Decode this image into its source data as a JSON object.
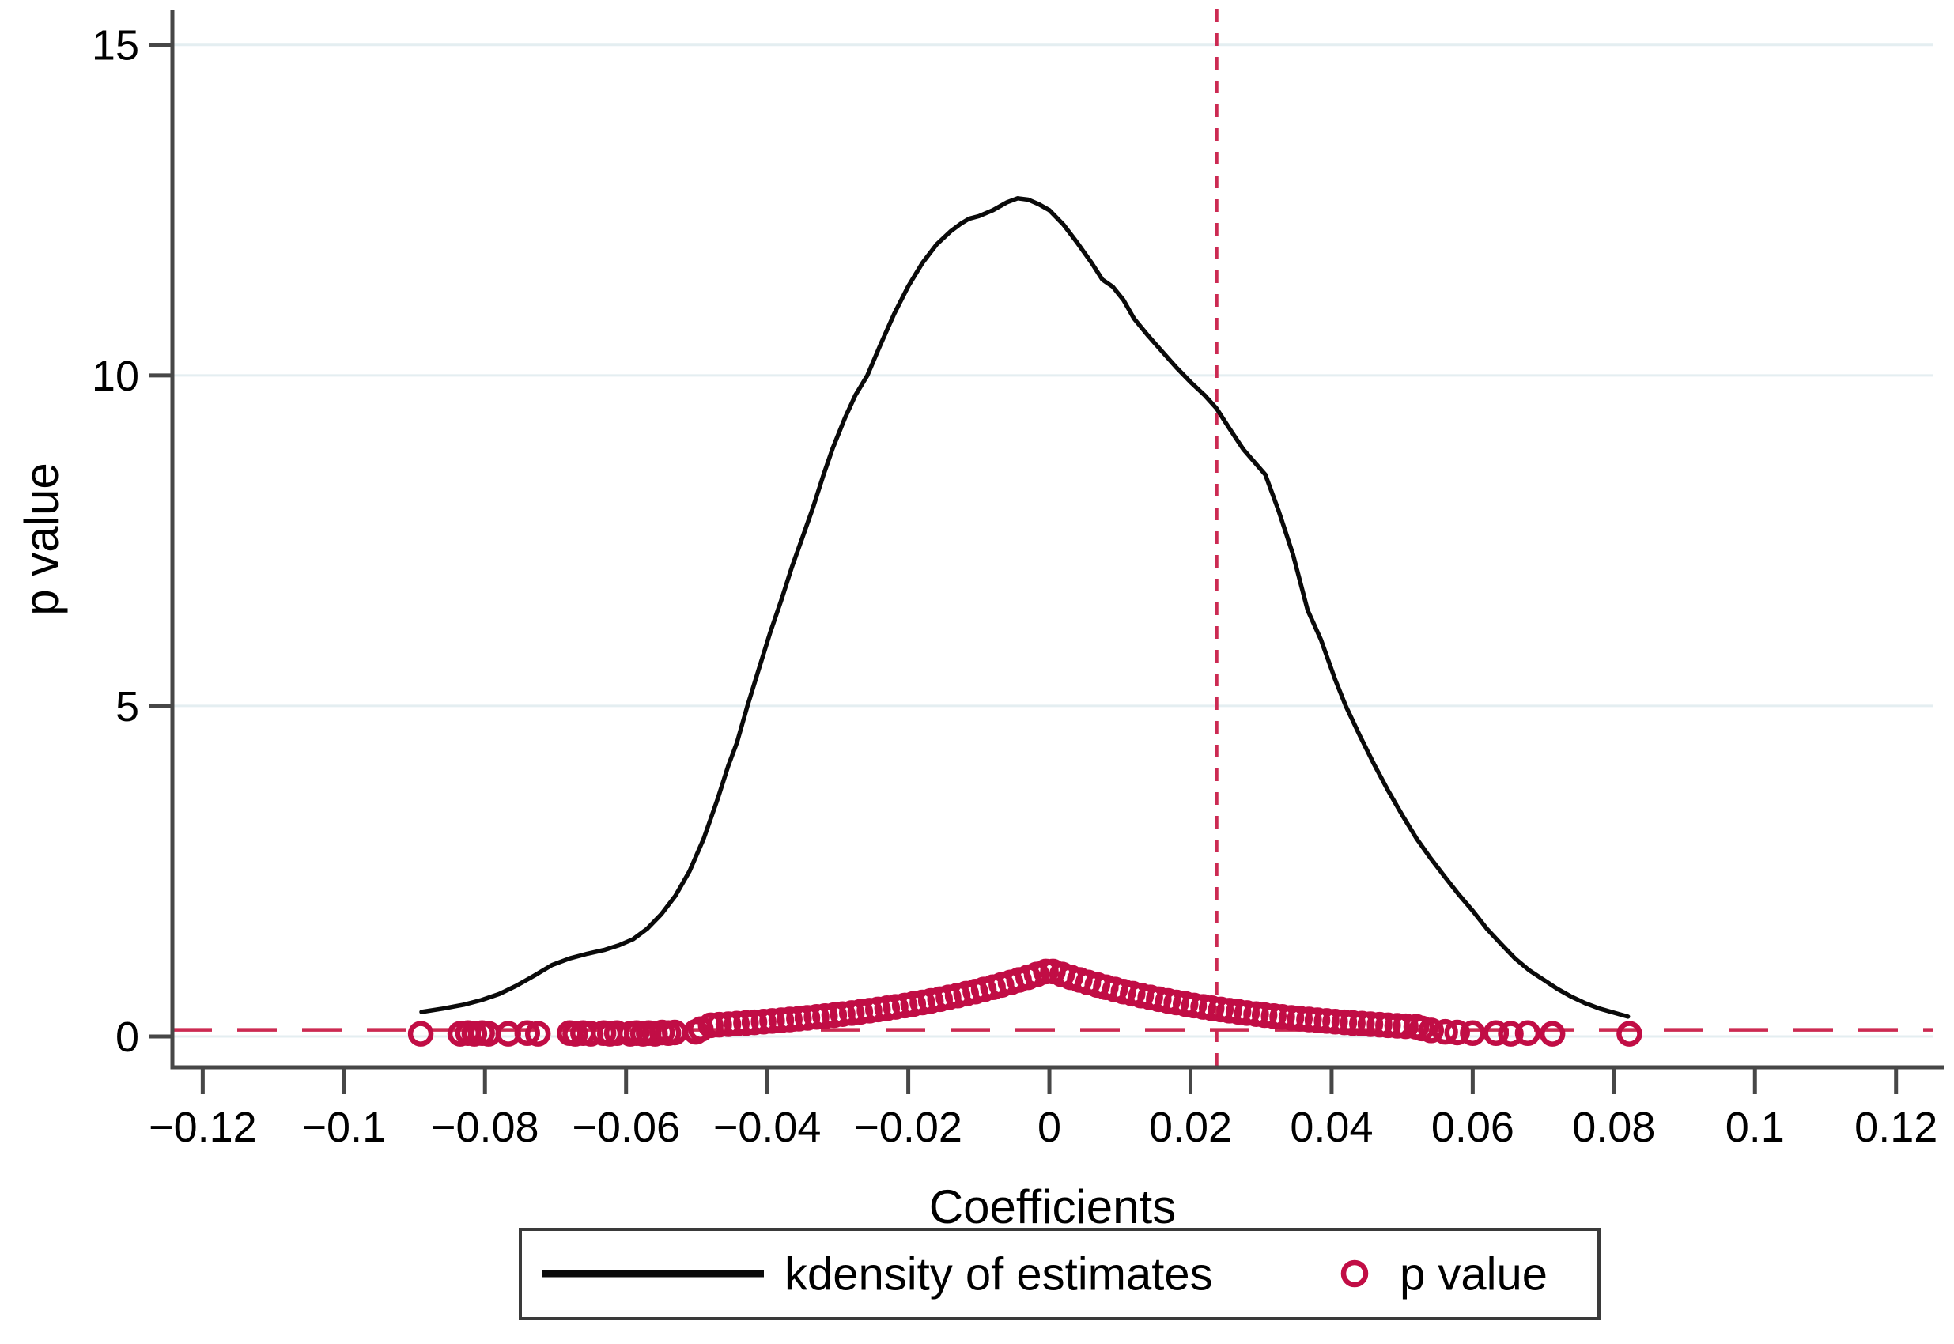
{
  "palette": {
    "cranberry": "#c10d45",
    "dashed_red": "#cc2a52",
    "curve_black": "#0a0a0a",
    "grid": "#e4eef1",
    "axis": "#474747",
    "background": "#ffffff"
  },
  "chart_data": {
    "type": "line",
    "title": "",
    "xlabel": "Coefficients",
    "ylabel": "p value",
    "xlim": [
      -0.1243,
      0.1253
    ],
    "ylim": [
      -0.467,
      15.5
    ],
    "grid": "horizontal",
    "legend_position": "bottom",
    "x_ticks": [
      -0.12,
      -0.1,
      -0.08,
      -0.06,
      -0.04,
      -0.02,
      0,
      0.02,
      0.04,
      0.06,
      0.08,
      0.1,
      0.12
    ],
    "x_tick_labels": [
      "−0.12",
      "−0.1",
      "−0.08",
      "−0.06",
      "−0.04",
      "−0.02",
      "0",
      "0.02",
      "0.04",
      "0.06",
      "0.08",
      "0.1",
      "0.12"
    ],
    "y_ticks": [
      0,
      5,
      10,
      15
    ],
    "y_tick_labels": [
      "0",
      "5",
      "10",
      "15"
    ],
    "reference_lines": {
      "vertical_x": 0.0237,
      "horizontal_y": 0.1,
      "style": "dashed",
      "color": "#cc2a52"
    },
    "legend": {
      "entries": [
        {
          "label": "kdensity of estimates",
          "type": "line",
          "color": "#0a0a0a"
        },
        {
          "label": "p value",
          "type": "circle-open",
          "color": "#c10d45"
        }
      ]
    },
    "series": [
      {
        "name": "kdensity of estimates",
        "type": "line",
        "color": "#0a0a0a",
        "points": [
          [
            -0.089,
            0.37
          ],
          [
            -0.086,
            0.42
          ],
          [
            -0.083,
            0.48
          ],
          [
            -0.0805,
            0.55
          ],
          [
            -0.078,
            0.64
          ],
          [
            -0.0755,
            0.77
          ],
          [
            -0.073,
            0.92
          ],
          [
            -0.0705,
            1.08
          ],
          [
            -0.068,
            1.18
          ],
          [
            -0.0655,
            1.25
          ],
          [
            -0.063,
            1.31
          ],
          [
            -0.061,
            1.38
          ],
          [
            -0.059,
            1.47
          ],
          [
            -0.057,
            1.63
          ],
          [
            -0.055,
            1.85
          ],
          [
            -0.053,
            2.13
          ],
          [
            -0.051,
            2.5
          ],
          [
            -0.049,
            2.99
          ],
          [
            -0.047,
            3.6
          ],
          [
            -0.0455,
            4.1
          ],
          [
            -0.0443,
            4.44
          ],
          [
            -0.0428,
            5.0
          ],
          [
            -0.0412,
            5.55
          ],
          [
            -0.0396,
            6.1
          ],
          [
            -0.038,
            6.6
          ],
          [
            -0.0365,
            7.1
          ],
          [
            -0.035,
            7.55
          ],
          [
            -0.0335,
            8.0
          ],
          [
            -0.032,
            8.5
          ],
          [
            -0.0307,
            8.9
          ],
          [
            -0.029,
            9.35
          ],
          [
            -0.0275,
            9.7
          ],
          [
            -0.0258,
            10.0
          ],
          [
            -0.024,
            10.45
          ],
          [
            -0.022,
            10.93
          ],
          [
            -0.02,
            11.35
          ],
          [
            -0.018,
            11.7
          ],
          [
            -0.016,
            11.98
          ],
          [
            -0.014,
            12.18
          ],
          [
            -0.0125,
            12.3
          ],
          [
            -0.0114,
            12.37
          ],
          [
            -0.01,
            12.41
          ],
          [
            -0.008,
            12.5
          ],
          [
            -0.006,
            12.62
          ],
          [
            -0.0045,
            12.68
          ],
          [
            -0.003,
            12.66
          ],
          [
            -0.0015,
            12.59
          ],
          [
            0,
            12.5
          ],
          [
            0.002,
            12.28
          ],
          [
            0.004,
            12.0
          ],
          [
            0.006,
            11.7
          ],
          [
            0.0075,
            11.45
          ],
          [
            0.009,
            11.34
          ],
          [
            0.0105,
            11.14
          ],
          [
            0.012,
            10.86
          ],
          [
            0.014,
            10.6
          ],
          [
            0.016,
            10.36
          ],
          [
            0.018,
            10.12
          ],
          [
            0.02,
            9.9
          ],
          [
            0.022,
            9.7
          ],
          [
            0.0237,
            9.5
          ],
          [
            0.0255,
            9.2
          ],
          [
            0.0275,
            8.88
          ],
          [
            0.0306,
            8.5
          ],
          [
            0.0325,
            7.95
          ],
          [
            0.0345,
            7.3
          ],
          [
            0.0366,
            6.45
          ],
          [
            0.0385,
            6.0
          ],
          [
            0.0405,
            5.4
          ],
          [
            0.042,
            5.0
          ],
          [
            0.044,
            4.55
          ],
          [
            0.046,
            4.12
          ],
          [
            0.048,
            3.72
          ],
          [
            0.05,
            3.35
          ],
          [
            0.052,
            3.0
          ],
          [
            0.054,
            2.7
          ],
          [
            0.056,
            2.42
          ],
          [
            0.058,
            2.15
          ],
          [
            0.06,
            1.9
          ],
          [
            0.062,
            1.63
          ],
          [
            0.064,
            1.4
          ],
          [
            0.066,
            1.18
          ],
          [
            0.068,
            1.0
          ],
          [
            0.07,
            0.86
          ],
          [
            0.072,
            0.72
          ],
          [
            0.074,
            0.6
          ],
          [
            0.076,
            0.5
          ],
          [
            0.078,
            0.42
          ],
          [
            0.08,
            0.36
          ],
          [
            0.082,
            0.3
          ]
        ]
      },
      {
        "name": "p value",
        "type": "scatter",
        "marker": "circle-open",
        "color": "#c10d45",
        "points": [
          [
            -0.0891,
            0.04
          ],
          [
            -0.0835,
            0.04
          ],
          [
            -0.0824,
            0.05
          ],
          [
            -0.0815,
            0.04
          ],
          [
            -0.0804,
            0.05
          ],
          [
            -0.0795,
            0.04
          ],
          [
            -0.0767,
            0.04
          ],
          [
            -0.074,
            0.05
          ],
          [
            -0.0725,
            0.04
          ],
          [
            -0.068,
            0.05
          ],
          [
            -0.0672,
            0.04
          ],
          [
            -0.0661,
            0.05
          ],
          [
            -0.065,
            0.04
          ],
          [
            -0.0632,
            0.05
          ],
          [
            -0.0623,
            0.04
          ],
          [
            -0.0613,
            0.05
          ],
          [
            -0.0594,
            0.04
          ],
          [
            -0.0585,
            0.05
          ],
          [
            -0.0576,
            0.04
          ],
          [
            -0.0568,
            0.05
          ],
          [
            -0.0559,
            0.04
          ],
          [
            -0.0549,
            0.06
          ],
          [
            -0.054,
            0.05
          ],
          [
            -0.0531,
            0.06
          ],
          [
            -0.0501,
            0.07
          ],
          [
            -0.0494,
            0.11
          ],
          [
            -0.048,
            0.169
          ],
          [
            -0.0468,
            0.177
          ],
          [
            -0.0455,
            0.185
          ],
          [
            -0.0443,
            0.194
          ],
          [
            -0.043,
            0.203
          ],
          [
            -0.0418,
            0.213
          ],
          [
            -0.0405,
            0.223
          ],
          [
            -0.0393,
            0.234
          ],
          [
            -0.038,
            0.245
          ],
          [
            -0.0368,
            0.256
          ],
          [
            -0.0355,
            0.269
          ],
          [
            -0.0343,
            0.281
          ],
          [
            -0.033,
            0.295
          ],
          [
            -0.0318,
            0.308
          ],
          [
            -0.0305,
            0.323
          ],
          [
            -0.0293,
            0.338
          ],
          [
            -0.028,
            0.354
          ],
          [
            -0.0268,
            0.371
          ],
          [
            -0.0255,
            0.389
          ],
          [
            -0.0243,
            0.407
          ],
          [
            -0.023,
            0.427
          ],
          [
            -0.0218,
            0.447
          ],
          [
            -0.0205,
            0.468
          ],
          [
            -0.0193,
            0.49
          ],
          [
            -0.018,
            0.513
          ],
          [
            -0.0168,
            0.538
          ],
          [
            -0.0155,
            0.563
          ],
          [
            -0.0143,
            0.59
          ],
          [
            -0.013,
            0.618
          ],
          [
            -0.0118,
            0.647
          ],
          [
            -0.0105,
            0.678
          ],
          [
            -0.0093,
            0.71
          ],
          [
            -0.008,
            0.744
          ],
          [
            -0.0068,
            0.779
          ],
          [
            -0.0055,
            0.816
          ],
          [
            -0.0043,
            0.854
          ],
          [
            -0.003,
            0.895
          ],
          [
            -0.0018,
            0.937
          ],
          [
            -0.0005,
            0.982
          ],
          [
            0.0005,
            0.982
          ],
          [
            0.0018,
            0.937
          ],
          [
            0.003,
            0.895
          ],
          [
            0.0043,
            0.854
          ],
          [
            0.0055,
            0.816
          ],
          [
            0.0068,
            0.779
          ],
          [
            0.008,
            0.744
          ],
          [
            0.0093,
            0.71
          ],
          [
            0.0105,
            0.678
          ],
          [
            0.0118,
            0.647
          ],
          [
            0.013,
            0.618
          ],
          [
            0.0143,
            0.59
          ],
          [
            0.0155,
            0.563
          ],
          [
            0.0168,
            0.538
          ],
          [
            0.018,
            0.513
          ],
          [
            0.0193,
            0.49
          ],
          [
            0.0205,
            0.468
          ],
          [
            0.0218,
            0.447
          ],
          [
            0.023,
            0.427
          ],
          [
            0.0243,
            0.407
          ],
          [
            0.0255,
            0.389
          ],
          [
            0.0268,
            0.371
          ],
          [
            0.028,
            0.354
          ],
          [
            0.0293,
            0.338
          ],
          [
            0.0305,
            0.323
          ],
          [
            0.0318,
            0.308
          ],
          [
            0.033,
            0.295
          ],
          [
            0.0343,
            0.281
          ],
          [
            0.0355,
            0.269
          ],
          [
            0.0368,
            0.256
          ],
          [
            0.038,
            0.245
          ],
          [
            0.0393,
            0.234
          ],
          [
            0.0405,
            0.223
          ],
          [
            0.0418,
            0.213
          ],
          [
            0.043,
            0.203
          ],
          [
            0.0443,
            0.194
          ],
          [
            0.0455,
            0.185
          ],
          [
            0.0468,
            0.177
          ],
          [
            0.048,
            0.169
          ],
          [
            0.0493,
            0.161
          ],
          [
            0.0505,
            0.154
          ],
          [
            0.052,
            0.146
          ],
          [
            0.0528,
            0.12
          ],
          [
            0.0541,
            0.09
          ],
          [
            0.0561,
            0.07
          ],
          [
            0.0578,
            0.06
          ],
          [
            0.06,
            0.05
          ],
          [
            0.0633,
            0.05
          ],
          [
            0.0654,
            0.04
          ],
          [
            0.0678,
            0.05
          ],
          [
            0.0713,
            0.04
          ],
          [
            0.0822,
            0.04
          ]
        ]
      }
    ]
  }
}
